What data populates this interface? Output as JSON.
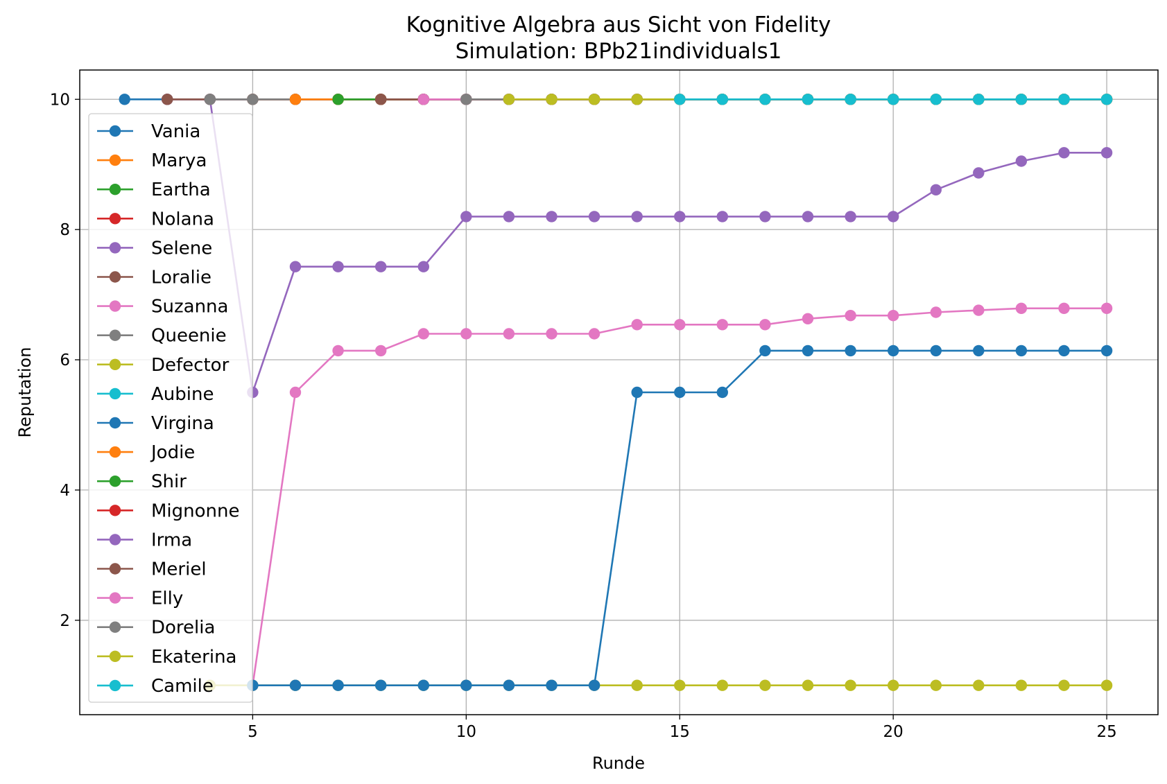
{
  "chart_data": {
    "type": "line",
    "title": "Kognitive Algebra aus Sicht von Fidelity",
    "subtitle": "Simulation: BPb21individuals1",
    "xlabel": "Runde",
    "ylabel": "Reputation",
    "xlim": [
      0.95,
      26.2
    ],
    "ylim": [
      0.55,
      10.45
    ],
    "xticks": [
      5,
      10,
      15,
      20,
      25
    ],
    "yticks": [
      2,
      4,
      6,
      8,
      10
    ],
    "grid": true,
    "legend_position": "left",
    "colors": {
      "Vania": "#1f77b4",
      "Marya": "#ff7f0e",
      "Eartha": "#2ca02c",
      "Nolana": "#d62728",
      "Selene": "#9467bd",
      "Loralie": "#8c564b",
      "Suzanna": "#e377c2",
      "Queenie": "#7f7f7f",
      "Defector": "#bcbd22",
      "Aubine": "#17becf",
      "Virgina": "#1f77b4",
      "Jodie": "#ff7f0e",
      "Shir": "#2ca02c",
      "Mignonne": "#d62728",
      "Irma": "#9467bd",
      "Meriel": "#8c564b",
      "Elly": "#e377c2",
      "Dorelia": "#7f7f7f",
      "Ekaterina": "#bcbd22",
      "Camile": "#17becf"
    },
    "series": [
      {
        "name": "Vania",
        "x": [
          2,
          3,
          4,
          5,
          6,
          7,
          8,
          9,
          10,
          11,
          12,
          13,
          14,
          15,
          16,
          17,
          18,
          19,
          20,
          21,
          22,
          23,
          24,
          25
        ],
        "values": [
          10,
          10,
          10,
          10,
          10,
          10,
          10,
          10,
          10,
          10,
          10,
          10,
          10,
          10,
          10,
          10,
          10,
          10,
          10,
          10,
          10,
          10,
          10,
          10
        ]
      },
      {
        "name": "Marya",
        "x": [
          5,
          6,
          7,
          8,
          9,
          10,
          11,
          12,
          13,
          14,
          15,
          16,
          17,
          18,
          19,
          20,
          21,
          22,
          23,
          24,
          25
        ],
        "values": [
          10,
          10,
          10,
          10,
          10,
          10,
          10,
          10,
          10,
          10,
          10,
          10,
          10,
          10,
          10,
          10,
          10,
          10,
          10,
          10,
          10
        ]
      },
      {
        "name": "Eartha",
        "x": [
          7,
          8,
          9,
          10,
          11,
          12,
          13,
          14,
          15,
          16,
          17,
          18,
          19,
          20,
          21,
          22,
          23,
          24,
          25
        ],
        "values": [
          10,
          10,
          10,
          10,
          10,
          10,
          10,
          10,
          10,
          10,
          10,
          10,
          10,
          10,
          10,
          10,
          10,
          10,
          10
        ]
      },
      {
        "name": "Nolana",
        "x": [
          3,
          4,
          5,
          6,
          7,
          8,
          9,
          10,
          11,
          12,
          13,
          14,
          15,
          16,
          17,
          18,
          19,
          20,
          21,
          22,
          23,
          24,
          25
        ],
        "values": [
          10,
          10,
          10,
          10,
          10,
          10,
          10,
          10,
          10,
          10,
          10,
          10,
          10,
          10,
          10,
          10,
          10,
          10,
          10,
          10,
          10,
          10,
          10
        ]
      },
      {
        "name": "Selene",
        "x": [
          3,
          4,
          5,
          6,
          7,
          8,
          9,
          10,
          11,
          12,
          13,
          14,
          15,
          16,
          17,
          18,
          19,
          20,
          21,
          22,
          23,
          24,
          25
        ],
        "values": [
          10,
          10,
          5.5,
          7.43,
          7.43,
          7.43,
          7.43,
          8.2,
          8.2,
          8.2,
          8.2,
          8.2,
          8.2,
          8.2,
          8.2,
          8.2,
          8.2,
          8.2,
          8.61,
          8.87,
          9.05,
          9.18,
          9.18
        ]
      },
      {
        "name": "Loralie",
        "x": [
          3,
          4,
          5,
          6,
          7,
          8,
          9,
          10,
          11,
          12,
          13,
          14,
          15,
          16,
          17,
          18,
          19,
          20,
          21,
          22,
          23,
          24,
          25
        ],
        "values": [
          10,
          10,
          10,
          10,
          10,
          10,
          10,
          10,
          10,
          10,
          10,
          10,
          10,
          10,
          10,
          10,
          10,
          10,
          10,
          10,
          10,
          10,
          10
        ]
      },
      {
        "name": "Suzanna",
        "x": [
          4,
          5,
          6,
          7,
          8,
          9,
          10,
          11,
          12,
          13,
          14,
          15,
          16,
          17,
          18,
          19,
          20,
          21,
          22,
          23,
          24,
          25
        ],
        "values": [
          1,
          1,
          5.5,
          6.14,
          6.14,
          6.4,
          6.4,
          6.4,
          6.4,
          6.4,
          6.54,
          6.54,
          6.54,
          6.54,
          6.63,
          6.68,
          6.68,
          6.73,
          6.76,
          6.79,
          6.79,
          6.79
        ]
      },
      {
        "name": "Queenie",
        "x": [
          4,
          5,
          6,
          7,
          8,
          9,
          10,
          11,
          12,
          13,
          14,
          15,
          16,
          17,
          18,
          19,
          20,
          21,
          22,
          23,
          24,
          25
        ],
        "values": [
          10,
          10,
          10,
          10,
          10,
          10,
          10,
          10,
          10,
          10,
          10,
          10,
          10,
          10,
          10,
          10,
          10,
          10,
          10,
          10,
          10,
          10
        ]
      },
      {
        "name": "Defector",
        "x": [
          4,
          5,
          6,
          7,
          8,
          9,
          10,
          11,
          12,
          13,
          14,
          15,
          16,
          17,
          18,
          19,
          20,
          21,
          22,
          23,
          24,
          25
        ],
        "values": [
          1,
          1,
          1,
          1,
          1,
          1,
          1,
          1,
          1,
          1,
          1,
          1,
          1,
          1,
          1,
          1,
          1,
          1,
          1,
          1,
          1,
          1
        ]
      },
      {
        "name": "Aubine",
        "x": [
          15,
          16,
          17,
          18,
          19,
          20,
          21,
          22,
          23,
          24,
          25
        ],
        "values": [
          10,
          10,
          10,
          10,
          10,
          10,
          10,
          10,
          10,
          10,
          10
        ]
      },
      {
        "name": "Virgina",
        "x": [
          5,
          6,
          7,
          8,
          9,
          10,
          11,
          12,
          13,
          14,
          15,
          16,
          17,
          18,
          19,
          20,
          21,
          22,
          23,
          24,
          25
        ],
        "values": [
          1,
          1,
          1,
          1,
          1,
          1,
          1,
          1,
          1,
          5.5,
          5.5,
          5.5,
          6.14,
          6.14,
          6.14,
          6.14,
          6.14,
          6.14,
          6.14,
          6.14,
          6.14
        ]
      },
      {
        "name": "Jodie",
        "x": [
          6,
          7,
          8,
          9,
          10,
          11,
          12,
          13,
          14,
          15,
          16,
          17,
          18,
          19,
          20,
          21,
          22,
          23,
          24,
          25
        ],
        "values": [
          10,
          10,
          10,
          10,
          10,
          10,
          10,
          10,
          10,
          10,
          10,
          10,
          10,
          10,
          10,
          10,
          10,
          10,
          10,
          10
        ]
      },
      {
        "name": "Shir",
        "x": [
          7,
          8,
          9,
          10,
          11,
          12,
          13,
          14,
          15,
          16,
          17,
          18,
          19,
          20,
          21,
          22,
          23,
          24,
          25
        ],
        "values": [
          10,
          10,
          10,
          10,
          10,
          10,
          10,
          10,
          10,
          10,
          10,
          10,
          10,
          10,
          10,
          10,
          10,
          10,
          10
        ]
      },
      {
        "name": "Mignonne",
        "x": [
          8,
          9,
          10,
          11,
          12,
          13,
          14,
          15,
          16,
          17,
          18,
          19,
          20,
          21,
          22,
          23,
          24,
          25
        ],
        "values": [
          10,
          10,
          10,
          10,
          10,
          10,
          10,
          10,
          10,
          10,
          10,
          10,
          10,
          10,
          10,
          10,
          10,
          10
        ]
      },
      {
        "name": "Irma",
        "x": [
          9,
          10,
          11,
          12,
          13,
          14,
          15,
          16,
          17,
          18,
          19,
          20,
          21,
          22,
          23,
          24,
          25
        ],
        "values": [
          10,
          10,
          10,
          10,
          10,
          10,
          10,
          10,
          10,
          10,
          10,
          10,
          10,
          10,
          10,
          10,
          10
        ]
      },
      {
        "name": "Meriel",
        "x": [
          8,
          9,
          10,
          11,
          12,
          13,
          14,
          15,
          16,
          17,
          18,
          19,
          20,
          21,
          22,
          23,
          24,
          25
        ],
        "values": [
          10,
          10,
          10,
          10,
          10,
          10,
          10,
          10,
          10,
          10,
          10,
          10,
          10,
          10,
          10,
          10,
          10,
          10
        ]
      },
      {
        "name": "Elly",
        "x": [
          9,
          10,
          11,
          12,
          13,
          14,
          15,
          16,
          17,
          18,
          19,
          20,
          21,
          22,
          23,
          24,
          25
        ],
        "values": [
          10,
          10,
          10,
          10,
          10,
          10,
          10,
          10,
          10,
          10,
          10,
          10,
          10,
          10,
          10,
          10,
          10
        ]
      },
      {
        "name": "Dorelia",
        "x": [
          10,
          11,
          12,
          13,
          14,
          15,
          16,
          17,
          18,
          19,
          20,
          21,
          22,
          23,
          24,
          25
        ],
        "values": [
          10,
          10,
          10,
          10,
          10,
          10,
          10,
          10,
          10,
          10,
          10,
          10,
          10,
          10,
          10,
          10
        ]
      },
      {
        "name": "Ekaterina",
        "x": [
          11,
          12,
          13,
          14,
          15,
          16,
          17,
          18,
          19,
          20,
          21,
          22,
          23,
          24,
          25
        ],
        "values": [
          10,
          10,
          10,
          10,
          10,
          10,
          10,
          10,
          10,
          10,
          10,
          10,
          10,
          10,
          10
        ]
      },
      {
        "name": "Camile",
        "x": [
          15,
          16,
          17,
          18,
          19,
          20,
          21,
          22,
          23,
          24,
          25
        ],
        "values": [
          10,
          10,
          10,
          10,
          10,
          10,
          10,
          10,
          10,
          10,
          10
        ]
      }
    ]
  }
}
